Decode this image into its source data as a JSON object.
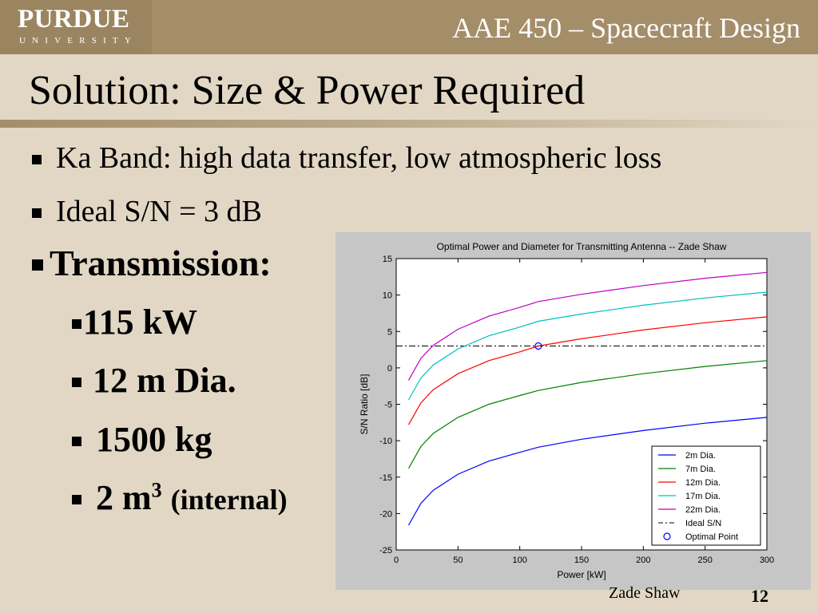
{
  "header": {
    "logo_main": "PURDUE",
    "logo_sub": "UNIVERSITY",
    "course": "AAE 450 – Spacecraft Design"
  },
  "slide": {
    "title": "Solution: Size & Power Required",
    "bullets": {
      "b1": "Ka Band: high data transfer, low atmospheric loss",
      "b2": "Ideal S/N = 3 dB",
      "b3": "Transmission:",
      "b4": "115 kW",
      "b5": "12 m Dia.",
      "b6": "1500 kg",
      "b7_main": "2 m",
      "b7_sup": "3",
      "b7_tail": "(internal)"
    },
    "footer_name": "Zade Shaw",
    "footer_page": "12"
  },
  "chart_data": {
    "type": "line",
    "title": "Optimal Power and Diameter for Transmitting Antenna -- Zade Shaw",
    "xlabel": "Power [kW]",
    "ylabel": "S/N Ratio [dB]",
    "xlim": [
      0,
      300
    ],
    "ylim": [
      -25,
      15
    ],
    "xticks": [
      0,
      50,
      100,
      150,
      200,
      250,
      300
    ],
    "yticks": [
      15,
      10,
      5,
      0,
      -5,
      -10,
      -15,
      -20,
      -25
    ],
    "x": [
      10,
      20,
      30,
      50,
      75,
      100,
      115,
      150,
      200,
      250,
      300
    ],
    "series": [
      {
        "name": "2m Dia.",
        "color": "#0000ff",
        "values": [
          -21.6,
          -18.6,
          -16.8,
          -14.6,
          -12.8,
          -11.6,
          -10.9,
          -9.8,
          -8.6,
          -7.6,
          -6.8
        ]
      },
      {
        "name": "7m Dia.",
        "color": "#008000",
        "values": [
          -13.8,
          -10.8,
          -9.0,
          -6.8,
          -5.0,
          -3.8,
          -3.1,
          -2.0,
          -0.8,
          0.2,
          1.0
        ]
      },
      {
        "name": "12m Dia.",
        "color": "#ff0000",
        "values": [
          -7.8,
          -4.8,
          -3.0,
          -0.8,
          1.0,
          2.2,
          3.0,
          4.0,
          5.2,
          6.2,
          7.0
        ]
      },
      {
        "name": "17m Dia.",
        "color": "#00bfbf",
        "values": [
          -4.4,
          -1.4,
          0.4,
          2.6,
          4.4,
          5.6,
          6.4,
          7.4,
          8.6,
          9.6,
          10.4
        ]
      },
      {
        "name": "22m Dia.",
        "color": "#bf00bf",
        "values": [
          -1.7,
          1.3,
          3.1,
          5.3,
          7.1,
          8.3,
          9.1,
          10.1,
          11.3,
          12.3,
          13.1
        ]
      }
    ],
    "ideal_sn": {
      "name": "Ideal S/N",
      "value": 3,
      "color": "#000000"
    },
    "optimal_point": {
      "name": "Optimal Point",
      "x": 115,
      "y": 3,
      "color": "#0000ff"
    },
    "legend": "bottom-right",
    "grid": false
  }
}
